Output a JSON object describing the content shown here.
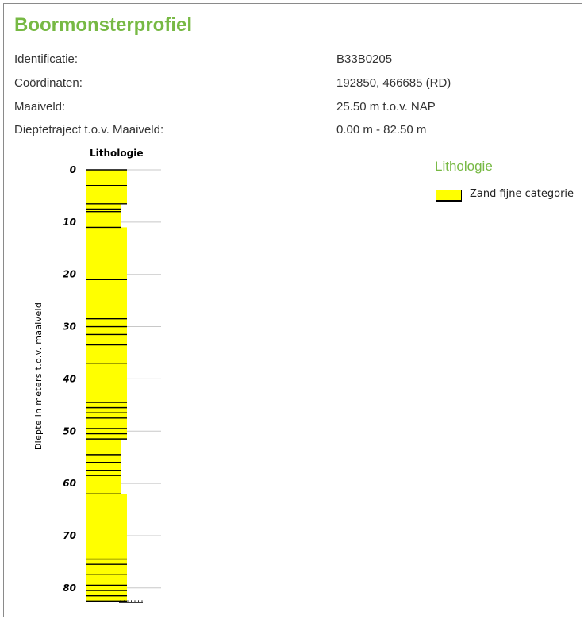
{
  "page": {
    "title": "Boormonsterprofiel"
  },
  "info": [
    {
      "label": "Identificatie:",
      "value": "B33B0205"
    },
    {
      "label": "Coördinaten:",
      "value": "192850, 466685 (RD)"
    },
    {
      "label": "Maaiveld:",
      "value": "25.50 m t.o.v. NAP"
    },
    {
      "label": "Dieptetraject t.o.v. Maaiveld:",
      "value": "0.00 m - 82.50 m"
    }
  ],
  "legend": {
    "title": "Lithologie",
    "items": [
      {
        "label": "Zand fijne categorie",
        "color": "#ffff00"
      }
    ]
  },
  "chart_data": {
    "type": "bar",
    "title": "Lithologie",
    "ylabel": "Diepte in meters t.o.v. maaiveld",
    "xlabel": "",
    "y_reversed": true,
    "ylim": [
      0,
      82.5
    ],
    "yticks": [
      0,
      10,
      20,
      30,
      40,
      50,
      60,
      70,
      80
    ],
    "grid": true,
    "layer_color": "#ffff00",
    "layer_boundaries": [
      0,
      3,
      6.5,
      7.5,
      8,
      11,
      21,
      28.5,
      30,
      31.5,
      33.5,
      37,
      44.5,
      45.5,
      46.5,
      47.5,
      49.5,
      50.5,
      51.5,
      54.5,
      56,
      57.5,
      58.5,
      62,
      74.5,
      75.5,
      77.5,
      79.5,
      80.5,
      81.5,
      82.5
    ],
    "layers": [
      {
        "top": 0,
        "bottom": 6.5,
        "lithology": "Zand fijne categorie",
        "width": 1.0
      },
      {
        "top": 6.5,
        "bottom": 11,
        "lithology": "Zand fijne categorie",
        "width": 0.85
      },
      {
        "top": 11,
        "bottom": 51.5,
        "lithology": "Zand fijne categorie",
        "width": 1.0
      },
      {
        "top": 51.5,
        "bottom": 62,
        "lithology": "Zand fijne categorie",
        "width": 0.85
      },
      {
        "top": 62,
        "bottom": 82.5,
        "lithology": "Zand fijne categorie",
        "width": 1.0
      }
    ]
  }
}
